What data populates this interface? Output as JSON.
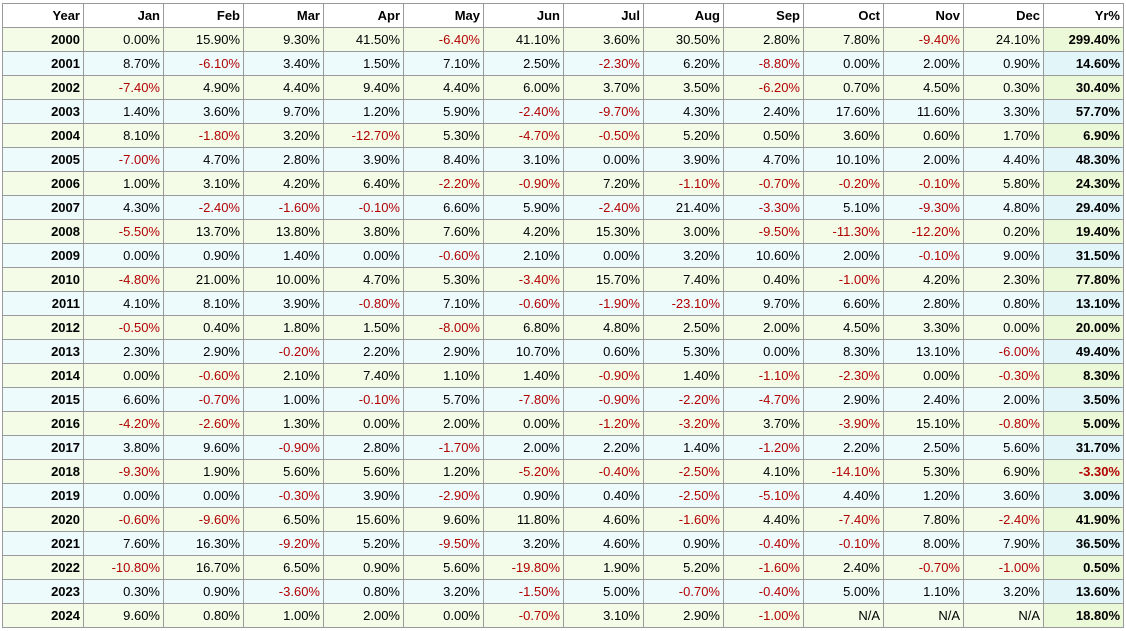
{
  "table": {
    "headers": [
      "Year",
      "Jan",
      "Feb",
      "Mar",
      "Apr",
      "May",
      "Jun",
      "Jul",
      "Aug",
      "Sep",
      "Oct",
      "Nov",
      "Dec",
      "Yr%"
    ],
    "rows": [
      [
        "2000",
        "0.00%",
        "15.90%",
        "9.30%",
        "41.50%",
        "-6.40%",
        "41.10%",
        "3.60%",
        "30.50%",
        "2.80%",
        "7.80%",
        "-9.40%",
        "24.10%",
        "299.40%"
      ],
      [
        "2001",
        "8.70%",
        "-6.10%",
        "3.40%",
        "1.50%",
        "7.10%",
        "2.50%",
        "-2.30%",
        "6.20%",
        "-8.80%",
        "0.00%",
        "2.00%",
        "0.90%",
        "14.60%"
      ],
      [
        "2002",
        "-7.40%",
        "4.90%",
        "4.40%",
        "9.40%",
        "4.40%",
        "6.00%",
        "3.70%",
        "3.50%",
        "-6.20%",
        "0.70%",
        "4.50%",
        "0.30%",
        "30.40%"
      ],
      [
        "2003",
        "1.40%",
        "3.60%",
        "9.70%",
        "1.20%",
        "5.90%",
        "-2.40%",
        "-9.70%",
        "4.30%",
        "2.40%",
        "17.60%",
        "11.60%",
        "3.30%",
        "57.70%"
      ],
      [
        "2004",
        "8.10%",
        "-1.80%",
        "3.20%",
        "-12.70%",
        "5.30%",
        "-4.70%",
        "-0.50%",
        "5.20%",
        "0.50%",
        "3.60%",
        "0.60%",
        "1.70%",
        "6.90%"
      ],
      [
        "2005",
        "-7.00%",
        "4.70%",
        "2.80%",
        "3.90%",
        "8.40%",
        "3.10%",
        "0.00%",
        "3.90%",
        "4.70%",
        "10.10%",
        "2.00%",
        "4.40%",
        "48.30%"
      ],
      [
        "2006",
        "1.00%",
        "3.10%",
        "4.20%",
        "6.40%",
        "-2.20%",
        "-0.90%",
        "7.20%",
        "-1.10%",
        "-0.70%",
        "-0.20%",
        "-0.10%",
        "5.80%",
        "24.30%"
      ],
      [
        "2007",
        "4.30%",
        "-2.40%",
        "-1.60%",
        "-0.10%",
        "6.60%",
        "5.90%",
        "-2.40%",
        "21.40%",
        "-3.30%",
        "5.10%",
        "-9.30%",
        "4.80%",
        "29.40%"
      ],
      [
        "2008",
        "-5.50%",
        "13.70%",
        "13.80%",
        "3.80%",
        "7.60%",
        "4.20%",
        "15.30%",
        "3.00%",
        "-9.50%",
        "-11.30%",
        "-12.20%",
        "0.20%",
        "19.40%"
      ],
      [
        "2009",
        "0.00%",
        "0.90%",
        "1.40%",
        "0.00%",
        "-0.60%",
        "2.10%",
        "0.00%",
        "3.20%",
        "10.60%",
        "2.00%",
        "-0.10%",
        "9.00%",
        "31.50%"
      ],
      [
        "2010",
        "-4.80%",
        "21.00%",
        "10.00%",
        "4.70%",
        "5.30%",
        "-3.40%",
        "15.70%",
        "7.40%",
        "0.40%",
        "-1.00%",
        "4.20%",
        "2.30%",
        "77.80%"
      ],
      [
        "2011",
        "4.10%",
        "8.10%",
        "3.90%",
        "-0.80%",
        "7.10%",
        "-0.60%",
        "-1.90%",
        "-23.10%",
        "9.70%",
        "6.60%",
        "2.80%",
        "0.80%",
        "13.10%"
      ],
      [
        "2012",
        "-0.50%",
        "0.40%",
        "1.80%",
        "1.50%",
        "-8.00%",
        "6.80%",
        "4.80%",
        "2.50%",
        "2.00%",
        "4.50%",
        "3.30%",
        "0.00%",
        "20.00%"
      ],
      [
        "2013",
        "2.30%",
        "2.90%",
        "-0.20%",
        "2.20%",
        "2.90%",
        "10.70%",
        "0.60%",
        "5.30%",
        "0.00%",
        "8.30%",
        "13.10%",
        "-6.00%",
        "49.40%"
      ],
      [
        "2014",
        "0.00%",
        "-0.60%",
        "2.10%",
        "7.40%",
        "1.10%",
        "1.40%",
        "-0.90%",
        "1.40%",
        "-1.10%",
        "-2.30%",
        "0.00%",
        "-0.30%",
        "8.30%"
      ],
      [
        "2015",
        "6.60%",
        "-0.70%",
        "1.00%",
        "-0.10%",
        "5.70%",
        "-7.80%",
        "-0.90%",
        "-2.20%",
        "-4.70%",
        "2.90%",
        "2.40%",
        "2.00%",
        "3.50%"
      ],
      [
        "2016",
        "-4.20%",
        "-2.60%",
        "1.30%",
        "0.00%",
        "2.00%",
        "0.00%",
        "-1.20%",
        "-3.20%",
        "3.70%",
        "-3.90%",
        "15.10%",
        "-0.80%",
        "5.00%"
      ],
      [
        "2017",
        "3.80%",
        "9.60%",
        "-0.90%",
        "2.80%",
        "-1.70%",
        "2.00%",
        "2.20%",
        "1.40%",
        "-1.20%",
        "2.20%",
        "2.50%",
        "5.60%",
        "31.70%"
      ],
      [
        "2018",
        "-9.30%",
        "1.90%",
        "5.60%",
        "5.60%",
        "1.20%",
        "-5.20%",
        "-0.40%",
        "-2.50%",
        "4.10%",
        "-14.10%",
        "5.30%",
        "6.90%",
        "-3.30%"
      ],
      [
        "2019",
        "0.00%",
        "0.00%",
        "-0.30%",
        "3.90%",
        "-2.90%",
        "0.90%",
        "0.40%",
        "-2.50%",
        "-5.10%",
        "4.40%",
        "1.20%",
        "3.60%",
        "3.00%"
      ],
      [
        "2020",
        "-0.60%",
        "-9.60%",
        "6.50%",
        "15.60%",
        "9.60%",
        "11.80%",
        "4.60%",
        "-1.60%",
        "4.40%",
        "-7.40%",
        "7.80%",
        "-2.40%",
        "41.90%"
      ],
      [
        "2021",
        "7.60%",
        "16.30%",
        "-9.20%",
        "5.20%",
        "-9.50%",
        "3.20%",
        "4.60%",
        "0.90%",
        "-0.40%",
        "-0.10%",
        "8.00%",
        "7.90%",
        "36.50%"
      ],
      [
        "2022",
        "-10.80%",
        "16.70%",
        "6.50%",
        "0.90%",
        "5.60%",
        "-19.80%",
        "1.90%",
        "5.20%",
        "-1.60%",
        "2.40%",
        "-0.70%",
        "-1.00%",
        "0.50%"
      ],
      [
        "2023",
        "0.30%",
        "0.90%",
        "-3.60%",
        "0.80%",
        "3.20%",
        "-1.50%",
        "5.00%",
        "-0.70%",
        "-0.40%",
        "5.00%",
        "1.10%",
        "3.20%",
        "13.60%"
      ],
      [
        "2024",
        "9.60%",
        "0.80%",
        "1.00%",
        "2.00%",
        "0.00%",
        "-0.70%",
        "3.10%",
        "2.90%",
        "-1.00%",
        "N/A",
        "N/A",
        "N/A",
        "18.80%"
      ]
    ]
  },
  "colors": {
    "negative_text": "#b20000",
    "positive_text": "#000000",
    "odd_row_background": "#f4fce8",
    "even_row_background": "#eefbfd",
    "grid_border": "#9a9a9a"
  }
}
